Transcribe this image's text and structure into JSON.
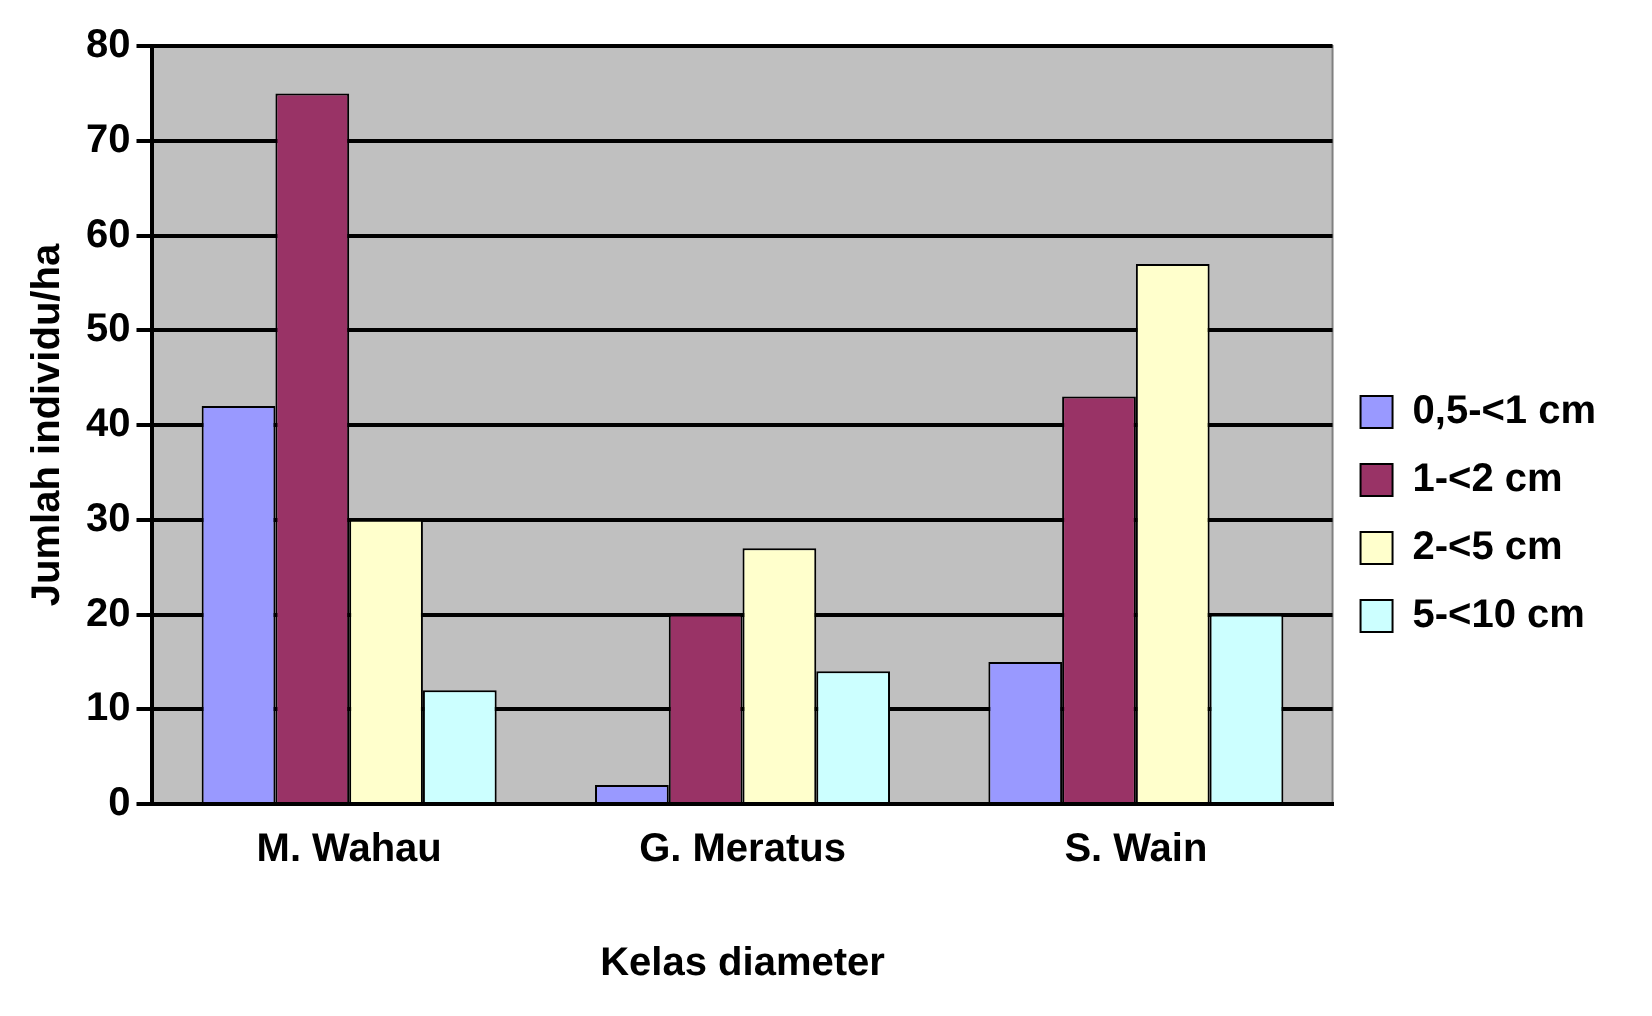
{
  "chart_data": {
    "type": "bar",
    "xlabel": "Kelas diameter",
    "ylabel": "Jumlah individu/ha",
    "categories": [
      "M. Wahau",
      "G. Meratus",
      "S. Wain"
    ],
    "series": [
      {
        "name": "0,5-<1 cm",
        "color": "#9999ff",
        "values": [
          42,
          2,
          15
        ]
      },
      {
        "name": "1-<2 cm",
        "color": "#993366",
        "values": [
          75,
          20,
          43
        ]
      },
      {
        "name": "2-<5 cm",
        "color": "#ffffcc",
        "values": [
          30,
          27,
          57
        ]
      },
      {
        "name": "5-<10 cm",
        "color": "#ccffff",
        "values": [
          12,
          14,
          20
        ]
      }
    ],
    "ylim": [
      0,
      80
    ],
    "yticks": [
      0,
      10,
      20,
      30,
      40,
      50,
      60,
      70,
      80
    ],
    "grid": "y",
    "legend": "right"
  }
}
